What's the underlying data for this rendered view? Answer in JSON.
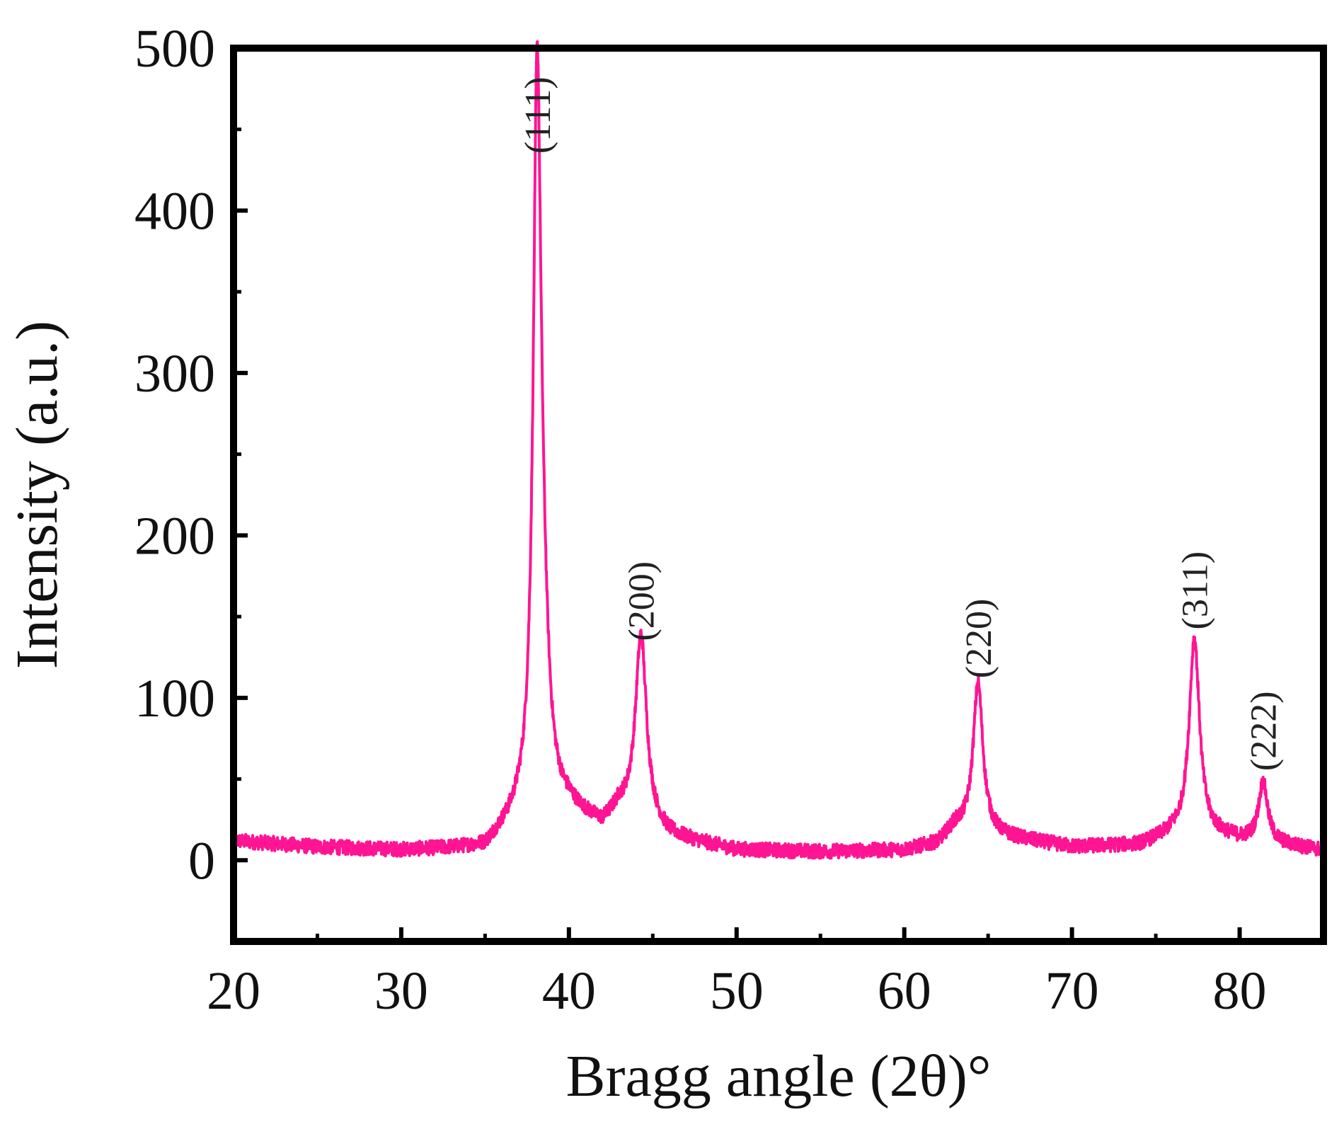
{
  "chart_data": {
    "type": "line",
    "title": "",
    "xlabel": "Bragg angle (2θ)°",
    "ylabel": "Intensity (a.u.)",
    "xlim": [
      20,
      85
    ],
    "ylim": [
      -50,
      500
    ],
    "x_ticks": [
      20,
      30,
      40,
      50,
      60,
      70,
      80
    ],
    "y_ticks": [
      0,
      100,
      200,
      300,
      400,
      500
    ],
    "grid": false,
    "legend": "none",
    "series": [
      {
        "color": "#ff1493",
        "baseline": [
          [
            20,
            12
          ],
          [
            25,
            8
          ],
          [
            30,
            6
          ],
          [
            35,
            7
          ],
          [
            36,
            16
          ],
          [
            37,
            24
          ],
          [
            40,
            30
          ],
          [
            42,
            20
          ],
          [
            43,
            30
          ],
          [
            46,
            14
          ],
          [
            50,
            6
          ],
          [
            55,
            5
          ],
          [
            60,
            6
          ],
          [
            62,
            10
          ],
          [
            63,
            20
          ],
          [
            66,
            14
          ],
          [
            70,
            8
          ],
          [
            74,
            9
          ],
          [
            76,
            15
          ],
          [
            79,
            14
          ],
          [
            80,
            12
          ],
          [
            82,
            10
          ],
          [
            85,
            6
          ]
        ],
        "peaks": [
          {
            "center": 38.1,
            "height": 412,
            "fwhm": 0.55
          },
          {
            "center": 38.4,
            "height": 90,
            "fwhm": 0.9
          },
          {
            "center": 44.3,
            "height": 115,
            "fwhm": 0.8
          },
          {
            "center": 64.4,
            "height": 92,
            "fwhm": 0.7
          },
          {
            "center": 77.3,
            "height": 122,
            "fwhm": 0.75
          },
          {
            "center": 81.4,
            "height": 37,
            "fwhm": 0.65
          }
        ]
      }
    ],
    "annotations": [
      {
        "text": "(111)",
        "x": 38.1,
        "y": 435
      },
      {
        "text": "(200)",
        "x": 44.3,
        "y": 135
      },
      {
        "text": "(220)",
        "x": 64.4,
        "y": 112
      },
      {
        "text": "(311)",
        "x": 77.3,
        "y": 142
      },
      {
        "text": "(222)",
        "x": 81.4,
        "y": 55
      }
    ]
  }
}
